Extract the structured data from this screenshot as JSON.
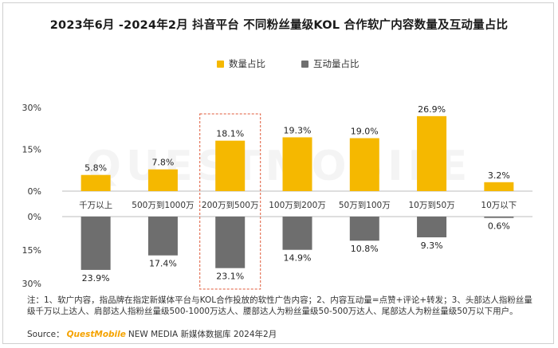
{
  "title": "2023年6月 -2024年2月 抖音平台 不同粉丝量级KOL 合作软广内容数量及互动量占比",
  "chart_data": {
    "type": "bar",
    "categories": [
      "千万以上",
      "500万到1000万",
      "200万到500万",
      "100万到200万",
      "50万到100万",
      "10万到50万",
      "10万以下"
    ],
    "series": [
      {
        "name": "数量占比",
        "values": [
          5.8,
          7.8,
          18.1,
          19.3,
          19.0,
          26.9,
          3.2
        ],
        "labels": [
          "5.8%",
          "7.8%",
          "18.1%",
          "19.3%",
          "19.0%",
          "26.9%",
          "3.2%"
        ]
      },
      {
        "name": "互动量占比",
        "values": [
          23.9,
          17.4,
          23.1,
          14.9,
          10.8,
          9.3,
          0.6
        ],
        "labels": [
          "23.9%",
          "17.4%",
          "23.1%",
          "14.9%",
          "10.8%",
          "9.3%",
          "0.6%"
        ]
      }
    ],
    "top_axis": {
      "ticks": [
        "30%",
        "15%",
        "0%"
      ],
      "range": [
        0,
        30
      ]
    },
    "bottom_axis": {
      "ticks": [
        "0%",
        "15%",
        "30%"
      ],
      "range": [
        0,
        30
      ]
    },
    "highlighted_category": "200万到500万",
    "colors": {
      "quantity": "#f5b800",
      "interaction": "#6e6e6e",
      "highlight_box": "#e05a3a",
      "grid": "#cccccc"
    }
  },
  "legend": {
    "quantity": "数量占比",
    "interaction": "互动量占比"
  },
  "notes": "注：1、软广内容，指品牌在指定新媒体平台与KOL合作投放的软性广告内容；2、内容互动量=点赞+评论+转发；3、头部达人指粉丝量级千万以上达人、肩部达人指粉丝量级500-1000万达人、腰部达人为粉丝量级50-500万达人、尾部达人为粉丝量级50万以下用户。",
  "source": {
    "prefix": "Source：",
    "brand": "QuestMobile",
    "suffix": "NEW MEDIA 新媒体数据库 2024年2月"
  },
  "watermark": "QUESTMOBILE"
}
